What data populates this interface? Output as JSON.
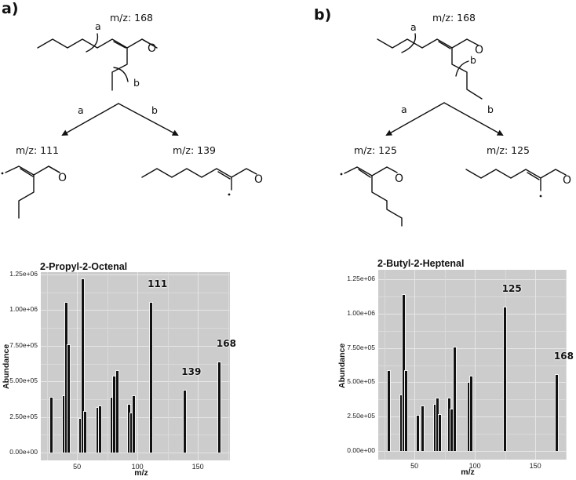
{
  "panels": [
    {
      "label": "a)",
      "parent": {
        "mz": "m/z: 168",
        "cleavage_a": "a",
        "cleavage_b": "b"
      },
      "arrows": {
        "left": "a",
        "right": "b"
      },
      "fragments": [
        {
          "mz": "m/z: 111"
        },
        {
          "mz": "m/z: 139"
        }
      ]
    },
    {
      "label": "b)",
      "parent": {
        "mz": "m/z: 168",
        "cleavage_a": "a",
        "cleavage_b": "b"
      },
      "arrows": {
        "left": "a",
        "right": "b"
      },
      "fragments": [
        {
          "mz": "m/z: 125"
        },
        {
          "mz": "m/z: 125"
        }
      ]
    }
  ],
  "chart_data": [
    {
      "type": "bar",
      "title": "2-Propyl-2-Octenal",
      "xlabel": "m/z",
      "ylabel": "Abundance",
      "xlim": [
        20,
        175
      ],
      "ylim": [
        0,
        1250000
      ],
      "xticks": [
        "50",
        "100",
        "150"
      ],
      "yticks": [
        "0.00e+00",
        "2.50e+05",
        "5.00e+05",
        "7.50e+05",
        "1.00e+06",
        "1.25e+06"
      ],
      "grid": true,
      "x": [
        29,
        39,
        41,
        43,
        53,
        55,
        57,
        67,
        69,
        79,
        81,
        83,
        93,
        95,
        97,
        111,
        139,
        168
      ],
      "values": [
        390000,
        400000,
        1060000,
        760000,
        240000,
        1220000,
        290000,
        320000,
        330000,
        390000,
        540000,
        580000,
        340000,
        280000,
        400000,
        1060000,
        440000,
        640000
      ],
      "annotations": [
        {
          "x": 111,
          "text": "111"
        },
        {
          "x": 139,
          "text": "139"
        },
        {
          "x": 168,
          "text": "168"
        }
      ]
    },
    {
      "type": "bar",
      "title": "2-Butyl-2-Heptenal",
      "xlabel": "m/z",
      "ylabel": "Abundance",
      "xlim": [
        20,
        175
      ],
      "ylim": [
        0,
        1250000
      ],
      "xticks": [
        "50",
        "100",
        "150"
      ],
      "yticks": [
        "0.00e+00",
        "2.50e+05",
        "5.00e+05",
        "7.50e+05",
        "1.00e+06",
        "1.25e+06"
      ],
      "grid": true,
      "x": [
        29,
        39,
        41,
        43,
        53,
        57,
        67,
        69,
        71,
        79,
        81,
        83,
        95,
        97,
        125,
        168
      ],
      "values": [
        590000,
        410000,
        1140000,
        590000,
        260000,
        330000,
        340000,
        390000,
        270000,
        390000,
        310000,
        760000,
        500000,
        550000,
        1050000,
        560000
      ],
      "annotations": [
        {
          "x": 125,
          "text": "125"
        },
        {
          "x": 168,
          "text": "168"
        }
      ]
    }
  ]
}
